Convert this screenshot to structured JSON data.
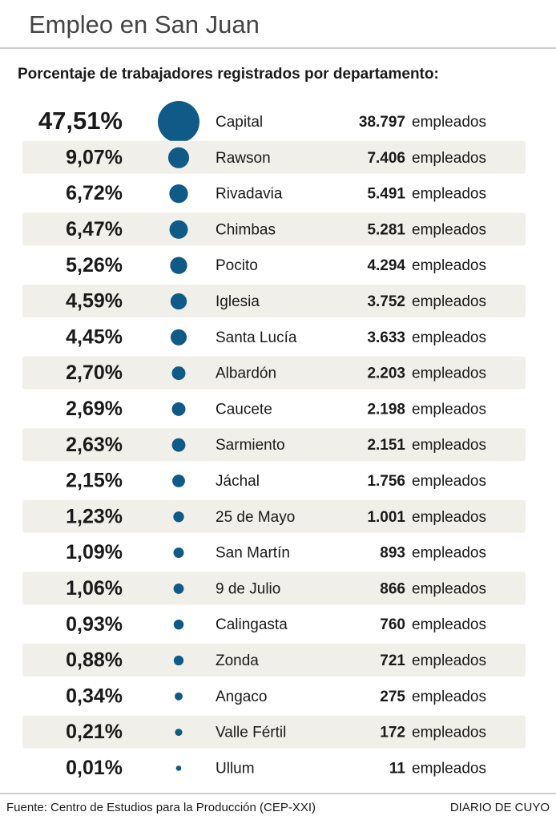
{
  "chart_data": {
    "type": "bubble",
    "title": "Empleo en San Juan",
    "subtitle": "Porcentaje de trabajadores registrados por departamento:",
    "categories": [
      "Capital",
      "Rawson",
      "Rivadavia",
      "Chimbas",
      "Pocito",
      "Iglesia",
      "Santa Lucía",
      "Albardón",
      "Caucete",
      "Sarmiento",
      "Jáchal",
      "25 de Mayo",
      "San Martín",
      "9 de Julio",
      "Calingasta",
      "Zonda",
      "Angaco",
      "Valle Fértil",
      "Ullum"
    ],
    "values": [
      47.51,
      9.07,
      6.72,
      6.47,
      5.26,
      4.59,
      4.45,
      2.7,
      2.69,
      2.63,
      2.15,
      1.23,
      1.09,
      1.06,
      0.93,
      0.88,
      0.34,
      0.21,
      0.01
    ],
    "value_labels": [
      "47,51%",
      "9,07%",
      "6,72%",
      "6,47%",
      "5,26%",
      "4,59%",
      "4,45%",
      "2,70%",
      "2,69%",
      "2,63%",
      "2,15%",
      "1,23%",
      "1,09%",
      "1,06%",
      "0,93%",
      "0,88%",
      "0,34%",
      "0,21%",
      "0,01%"
    ],
    "employees": [
      38797,
      7406,
      5491,
      5281,
      4294,
      3752,
      3633,
      2203,
      2198,
      2151,
      1756,
      1001,
      893,
      866,
      760,
      721,
      275,
      172,
      11
    ],
    "employee_labels": [
      "38.797",
      "7.406",
      "5.491",
      "5.281",
      "4.294",
      "3.752",
      "3.633",
      "2.203",
      "2.198",
      "2.151",
      "1.756",
      "1.001",
      "893",
      "866",
      "760",
      "721",
      "275",
      "172",
      "11"
    ],
    "employee_unit": "empleados",
    "color": "#0f5a86",
    "source": "Fuente: Centro de Estudios para la Producción (CEP-XXI)",
    "brand": "DIARIO DE CUYO"
  }
}
